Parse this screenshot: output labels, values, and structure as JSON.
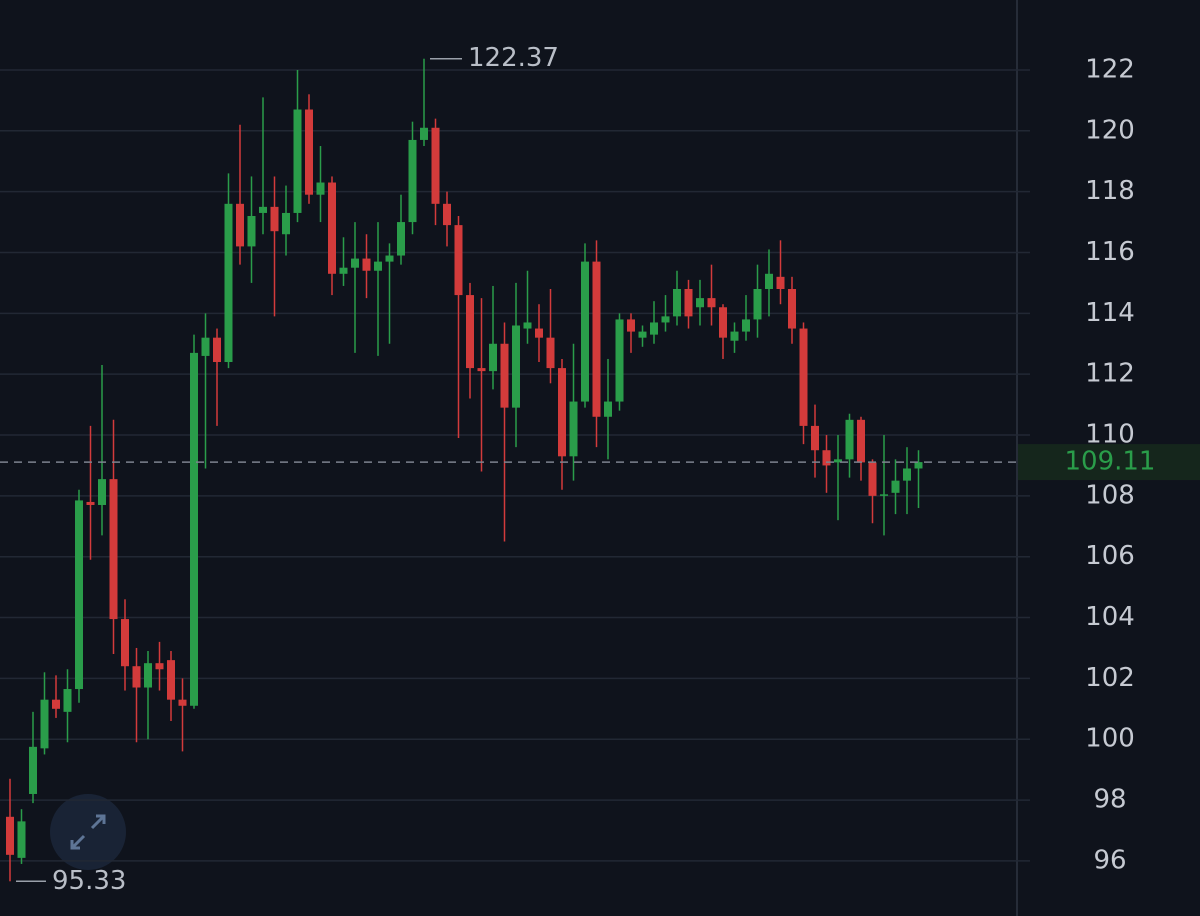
{
  "chart_data": {
    "type": "candlestick",
    "open": [
      97.45,
      96.1,
      98.2,
      99.7,
      101.3,
      100.9,
      101.65,
      107.8,
      107.7,
      108.55,
      103.95,
      102.4,
      101.7,
      102.5,
      102.6,
      101.3,
      101.1,
      112.6,
      113.2,
      112.4,
      117.6,
      116.2,
      117.3,
      117.5,
      116.6,
      117.3,
      120.7,
      117.9,
      118.3,
      115.3,
      115.5,
      115.8,
      115.4,
      115.7,
      115.9,
      117.0,
      119.7,
      120.1,
      117.6,
      116.9,
      114.6,
      112.2,
      112.1,
      113.0,
      110.9,
      113.5,
      113.5,
      113.2,
      112.2,
      109.3,
      111.1,
      115.7,
      110.6,
      111.1,
      113.8,
      113.2,
      113.3,
      113.7,
      113.9,
      114.8,
      114.2,
      114.5,
      114.2,
      113.1,
      113.4,
      113.8,
      114.8,
      115.2,
      114.8,
      113.5,
      110.3,
      109.5,
      109.1,
      109.2,
      110.5,
      109.1,
      108.0,
      108.1,
      108.5,
      108.9
    ],
    "high": [
      98.7,
      97.7,
      100.9,
      102.2,
      102.1,
      102.3,
      108.2,
      110.3,
      112.3,
      110.5,
      104.6,
      103.0,
      102.9,
      103.2,
      102.9,
      102.0,
      113.3,
      114.0,
      113.5,
      118.6,
      120.2,
      118.5,
      121.1,
      118.5,
      118.2,
      122.0,
      121.2,
      119.5,
      118.5,
      116.5,
      117.0,
      116.6,
      117.0,
      116.3,
      117.9,
      120.3,
      122.37,
      120.4,
      118.0,
      117.2,
      115.0,
      114.5,
      114.9,
      113.7,
      115.0,
      115.4,
      114.3,
      114.8,
      112.5,
      113.0,
      116.3,
      116.4,
      112.5,
      114.0,
      114.0,
      113.6,
      114.4,
      114.6,
      115.4,
      115.1,
      115.1,
      115.6,
      114.3,
      113.7,
      114.6,
      115.6,
      116.1,
      116.4,
      115.2,
      113.7,
      111.0,
      110.0,
      110.0,
      110.7,
      110.6,
      109.2,
      110.0,
      109.2,
      109.6,
      109.5
    ],
    "low": [
      95.33,
      95.9,
      97.9,
      99.5,
      100.7,
      99.9,
      101.2,
      105.9,
      106.7,
      102.8,
      101.6,
      99.9,
      100.0,
      101.6,
      100.6,
      99.6,
      101.0,
      108.9,
      110.3,
      112.2,
      115.6,
      115.0,
      116.6,
      113.9,
      115.9,
      117.0,
      117.6,
      117.0,
      114.6,
      114.9,
      112.7,
      114.5,
      112.6,
      113.0,
      115.6,
      116.6,
      119.5,
      116.9,
      116.2,
      109.9,
      111.2,
      108.8,
      111.5,
      106.5,
      109.6,
      113.0,
      112.4,
      111.7,
      108.2,
      108.5,
      110.9,
      109.6,
      109.2,
      110.8,
      112.7,
      112.9,
      113.0,
      113.4,
      113.6,
      113.5,
      113.6,
      113.6,
      112.5,
      112.7,
      113.1,
      113.2,
      113.9,
      114.3,
      113.0,
      109.7,
      108.6,
      108.1,
      107.2,
      108.6,
      108.5,
      107.1,
      106.7,
      107.4,
      107.4,
      107.6
    ],
    "close": [
      96.2,
      97.3,
      99.75,
      101.3,
      101.0,
      101.65,
      107.85,
      107.7,
      108.55,
      103.95,
      102.4,
      101.7,
      102.5,
      102.3,
      101.3,
      101.1,
      112.7,
      113.2,
      112.4,
      117.6,
      116.2,
      117.2,
      117.5,
      116.7,
      117.3,
      120.7,
      117.9,
      118.3,
      115.3,
      115.5,
      115.8,
      115.4,
      115.7,
      115.9,
      117.0,
      119.7,
      120.1,
      117.6,
      116.9,
      114.6,
      112.2,
      112.1,
      113.0,
      110.9,
      113.6,
      113.7,
      113.2,
      112.2,
      109.3,
      111.1,
      115.7,
      110.6,
      111.1,
      113.8,
      113.4,
      113.4,
      113.7,
      113.9,
      114.8,
      113.9,
      114.5,
      114.2,
      113.2,
      113.4,
      113.8,
      114.8,
      115.3,
      114.8,
      113.5,
      110.3,
      109.5,
      109.0,
      109.2,
      110.5,
      109.1,
      108.0,
      108.05,
      108.5,
      108.9,
      109.11
    ],
    "up_color": "#2a9d4a",
    "down_color": "#d33b3b",
    "ylim": [
      94.6,
      124.3
    ],
    "yticks": [
      96,
      98,
      100,
      102,
      104,
      106,
      108,
      110,
      112,
      114,
      116,
      118,
      120,
      122
    ],
    "grid": true
  }
}
